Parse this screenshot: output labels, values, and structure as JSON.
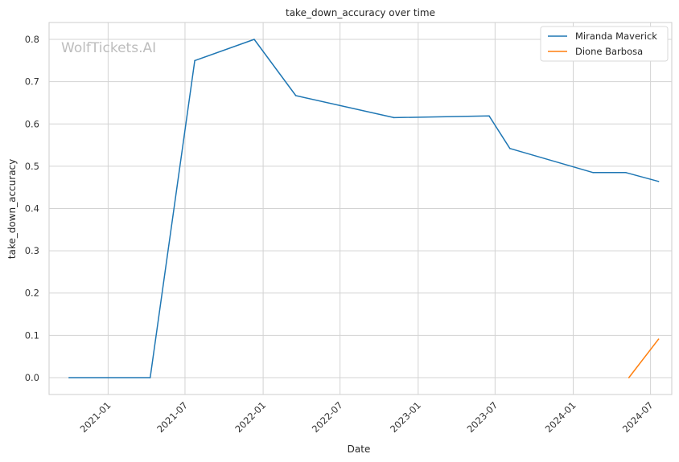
{
  "chart_data": {
    "type": "line",
    "title": "take_down_accuracy over time",
    "xlabel": "Date",
    "ylabel": "take_down_accuracy",
    "watermark": "WolfTickets.AI",
    "x_ticks": [
      "2021-01",
      "2021-07",
      "2022-01",
      "2022-07",
      "2023-01",
      "2023-07",
      "2024-01",
      "2024-07"
    ],
    "y_ticks": [
      "0.0",
      "0.1",
      "0.2",
      "0.3",
      "0.4",
      "0.5",
      "0.6",
      "0.7",
      "0.8"
    ],
    "xlim": [
      "2020-08-15",
      "2024-08-20"
    ],
    "ylim": [
      -0.04,
      0.84
    ],
    "grid": true,
    "legend_position": "top-right",
    "series": [
      {
        "name": "Miranda Maverick",
        "color": "#1f77b4",
        "points": [
          {
            "x": "2020-10-01",
            "y": 0.0
          },
          {
            "x": "2021-04-10",
            "y": 0.0
          },
          {
            "x": "2021-07-24",
            "y": 0.75
          },
          {
            "x": "2021-12-11",
            "y": 0.8
          },
          {
            "x": "2022-03-19",
            "y": 0.667
          },
          {
            "x": "2022-11-05",
            "y": 0.615
          },
          {
            "x": "2023-06-17",
            "y": 0.619
          },
          {
            "x": "2023-08-05",
            "y": 0.542
          },
          {
            "x": "2024-02-17",
            "y": 0.485
          },
          {
            "x": "2024-05-04",
            "y": 0.485
          },
          {
            "x": "2024-07-20",
            "y": 0.464
          }
        ]
      },
      {
        "name": "Dione Barbosa",
        "color": "#ff7f0e",
        "points": [
          {
            "x": "2024-05-11",
            "y": 0.0
          },
          {
            "x": "2024-07-20",
            "y": 0.091
          }
        ]
      }
    ]
  }
}
